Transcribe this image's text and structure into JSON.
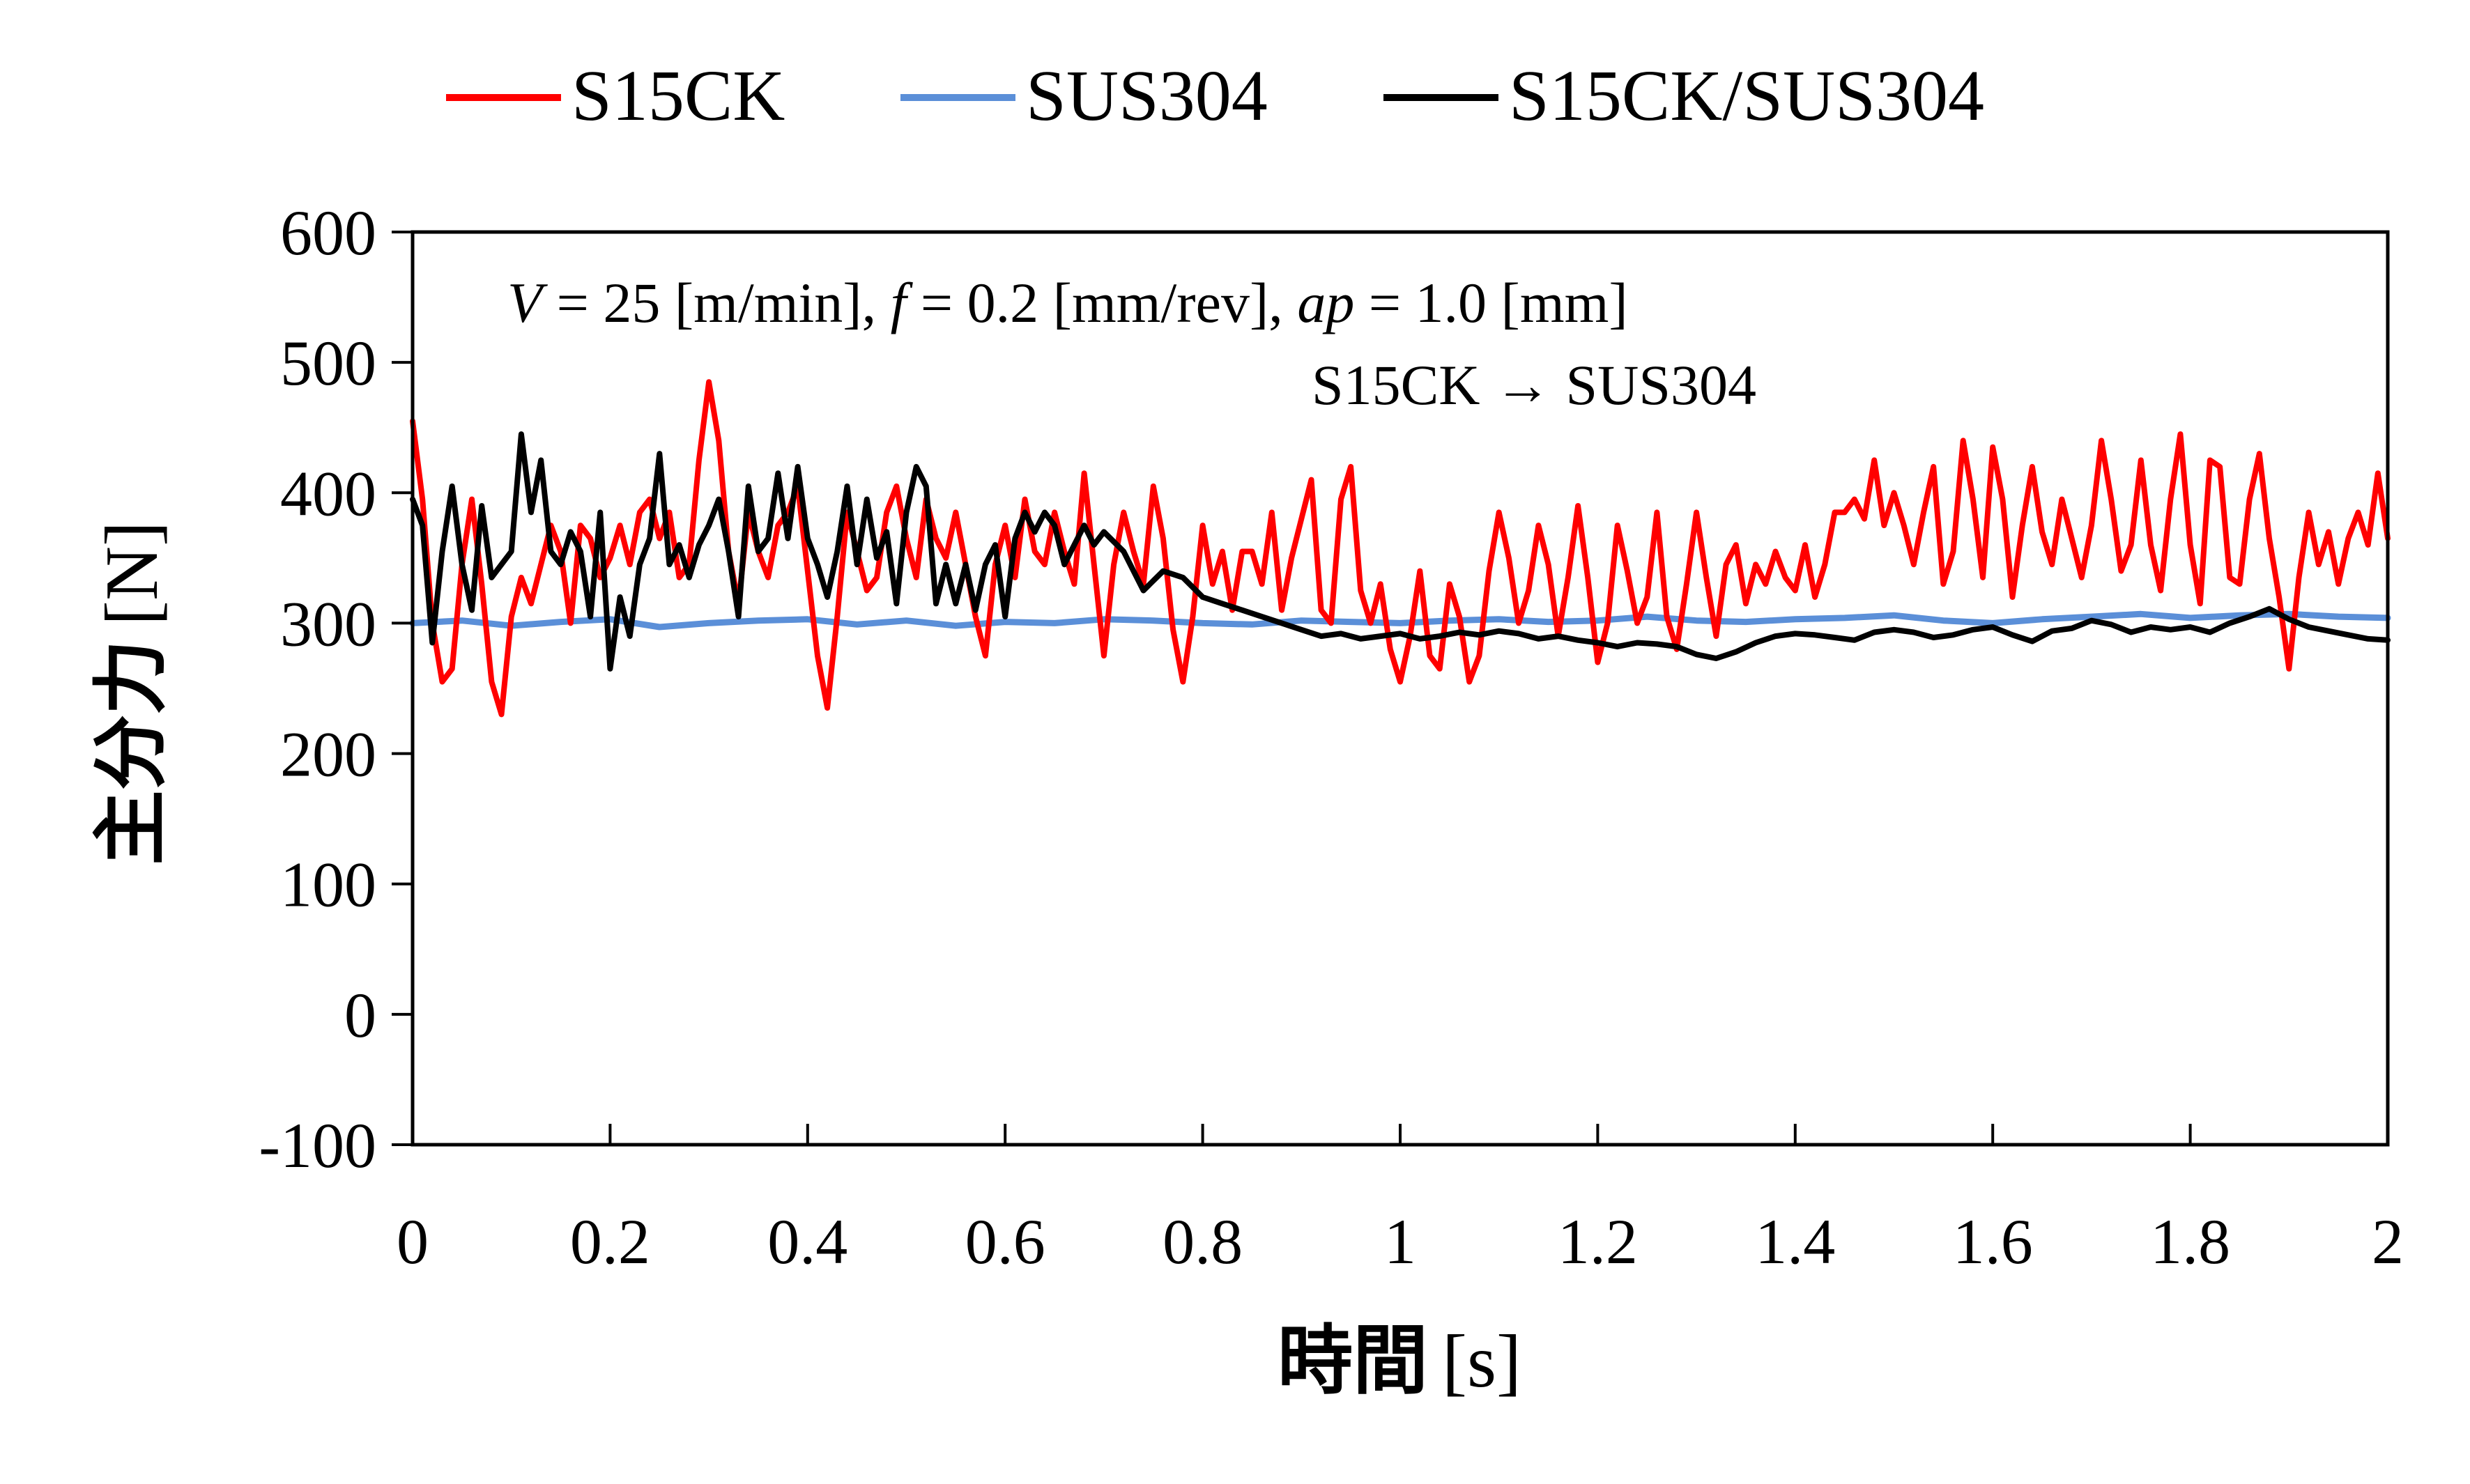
{
  "chart_data": {
    "type": "line",
    "title": "",
    "xlabel": "時間 [s]",
    "ylabel": "主分力 [N]",
    "xlabel_parts": {
      "name": "時間",
      "unit": "[s]"
    },
    "ylabel_parts": {
      "name": "主分力",
      "unit": "[N]"
    },
    "xlim": [
      0,
      2
    ],
    "ylim": [
      -100,
      600
    ],
    "xticks": [
      0,
      0.2,
      0.4,
      0.6,
      0.8,
      1,
      1.2,
      1.4,
      1.6,
      1.8,
      2
    ],
    "xtick_labels": [
      "0",
      "0.2",
      "0.4",
      "0.6",
      "0.8",
      "1",
      "1.2",
      "1.4",
      "1.6",
      "1.8",
      "2"
    ],
    "yticks": [
      -100,
      0,
      100,
      200,
      300,
      400,
      500,
      600
    ],
    "ytick_labels": [
      "-100",
      "0",
      "100",
      "200",
      "300",
      "400",
      "500",
      "600"
    ],
    "grid": false,
    "legend_position": "top-center",
    "annotations": {
      "conditions": {
        "v_symbol": "V",
        "v_text": " = 25 [m/min], ",
        "f_symbol": "f",
        "f_text": " = 0.2 [mm/rev], ",
        "ap_symbol": "ap",
        "ap_text": " = 1.0 [mm]"
      },
      "transition": "S15CK → SUS304"
    },
    "series": [
      {
        "name": "S15CK",
        "color": "#ff0000",
        "x": [
          0,
          0.01,
          0.02,
          0.03,
          0.04,
          0.05,
          0.06,
          0.07,
          0.08,
          0.09,
          0.1,
          0.11,
          0.12,
          0.13,
          0.14,
          0.15,
          0.16,
          0.17,
          0.18,
          0.19,
          0.2,
          0.21,
          0.22,
          0.23,
          0.24,
          0.25,
          0.26,
          0.27,
          0.28,
          0.29,
          0.3,
          0.31,
          0.32,
          0.33,
          0.34,
          0.35,
          0.36,
          0.37,
          0.38,
          0.39,
          0.4,
          0.41,
          0.42,
          0.43,
          0.44,
          0.45,
          0.46,
          0.47,
          0.48,
          0.49,
          0.5,
          0.51,
          0.52,
          0.53,
          0.54,
          0.55,
          0.56,
          0.57,
          0.58,
          0.59,
          0.6,
          0.61,
          0.62,
          0.63,
          0.64,
          0.65,
          0.66,
          0.67,
          0.68,
          0.69,
          0.7,
          0.71,
          0.72,
          0.73,
          0.74,
          0.75,
          0.76,
          0.77,
          0.78,
          0.79,
          0.8,
          0.81,
          0.82,
          0.83,
          0.84,
          0.85,
          0.86,
          0.87,
          0.88,
          0.89,
          0.9,
          0.91,
          0.92,
          0.93,
          0.94,
          0.95,
          0.96,
          0.97,
          0.98,
          0.99,
          1,
          1.01,
          1.02,
          1.03,
          1.04,
          1.05,
          1.06,
          1.07,
          1.08,
          1.09,
          1.1,
          1.11,
          1.12,
          1.13,
          1.14,
          1.15,
          1.16,
          1.17,
          1.18,
          1.19,
          1.2,
          1.21,
          1.22,
          1.23,
          1.24,
          1.25,
          1.26,
          1.27,
          1.28,
          1.29,
          1.3,
          1.31,
          1.32,
          1.33,
          1.34,
          1.35,
          1.36,
          1.37,
          1.38,
          1.39,
          1.4,
          1.41,
          1.42,
          1.43,
          1.44,
          1.45,
          1.46,
          1.47,
          1.48,
          1.49,
          1.5,
          1.51,
          1.52,
          1.53,
          1.54,
          1.55,
          1.56,
          1.57,
          1.58,
          1.59,
          1.6,
          1.61,
          1.62,
          1.63,
          1.64,
          1.65,
          1.66,
          1.67,
          1.68,
          1.69,
          1.7,
          1.71,
          1.72,
          1.73,
          1.74,
          1.75,
          1.76,
          1.77,
          1.78,
          1.79,
          1.8,
          1.81,
          1.82,
          1.83,
          1.84,
          1.85,
          1.86,
          1.87,
          1.88,
          1.89,
          1.9,
          1.91,
          1.92,
          1.93,
          1.94,
          1.95,
          1.96,
          1.97,
          1.98,
          1.99,
          2
        ],
        "y": [
          455,
          395,
          300,
          255,
          265,
          345,
          395,
          330,
          255,
          230,
          305,
          335,
          315,
          345,
          375,
          355,
          300,
          375,
          365,
          335,
          350,
          375,
          345,
          385,
          395,
          365,
          385,
          335,
          345,
          425,
          485,
          440,
          355,
          315,
          385,
          355,
          335,
          375,
          385,
          405,
          340,
          275,
          235,
          305,
          385,
          355,
          325,
          335,
          385,
          405,
          365,
          335,
          395,
          365,
          350,
          385,
          345,
          305,
          275,
          345,
          375,
          335,
          395,
          355,
          345,
          385,
          355,
          330,
          415,
          345,
          275,
          345,
          385,
          355,
          330,
          405,
          365,
          295,
          255,
          305,
          375,
          330,
          355,
          310,
          355,
          355,
          330,
          385,
          310,
          350,
          380,
          410,
          310,
          300,
          395,
          420,
          325,
          300,
          330,
          280,
          255,
          290,
          340,
          275,
          265,
          330,
          305,
          255,
          275,
          340,
          385,
          350,
          300,
          325,
          375,
          345,
          290,
          335,
          390,
          335,
          270,
          300,
          375,
          340,
          300,
          320,
          385,
          305,
          280,
          330,
          385,
          335,
          290,
          345,
          360,
          315,
          345,
          330,
          355,
          335,
          325,
          360,
          320,
          345,
          385,
          385,
          395,
          380,
          425,
          375,
          400,
          375,
          345,
          385,
          420,
          330,
          355,
          440,
          395,
          335,
          435,
          395,
          320,
          375,
          420,
          370,
          345,
          395,
          365,
          335,
          375,
          440,
          395,
          340,
          360,
          425,
          360,
          325,
          395,
          445,
          360,
          315,
          425,
          420,
          335,
          330,
          395,
          430,
          365,
          320,
          265,
          335,
          385,
          345,
          370,
          330,
          365,
          385,
          360,
          415,
          365
        ]
      },
      {
        "name": "SUS304",
        "color": "#5b8fd8",
        "x": [
          0,
          0.05,
          0.1,
          0.15,
          0.2,
          0.25,
          0.3,
          0.35,
          0.4,
          0.45,
          0.5,
          0.55,
          0.6,
          0.65,
          0.7,
          0.75,
          0.8,
          0.85,
          0.9,
          0.95,
          1,
          1.05,
          1.1,
          1.15,
          1.2,
          1.25,
          1.3,
          1.35,
          1.4,
          1.45,
          1.5,
          1.55,
          1.6,
          1.65,
          1.7,
          1.75,
          1.8,
          1.85,
          1.9,
          1.95,
          2
        ],
        "y": [
          300,
          302,
          298,
          301,
          303,
          297,
          300,
          302,
          303,
          299,
          302,
          298,
          301,
          300,
          303,
          302,
          300,
          299,
          302,
          301,
          300,
          302,
          303,
          301,
          302,
          305,
          302,
          301,
          303,
          304,
          306,
          302,
          300,
          303,
          305,
          307,
          304,
          306,
          307,
          305,
          304
        ]
      },
      {
        "name": "S15CK/SUS304",
        "color": "#000000",
        "x": [
          0,
          0.01,
          0.02,
          0.03,
          0.04,
          0.05,
          0.06,
          0.07,
          0.08,
          0.09,
          0.1,
          0.11,
          0.12,
          0.13,
          0.14,
          0.15,
          0.16,
          0.17,
          0.18,
          0.19,
          0.2,
          0.21,
          0.22,
          0.23,
          0.24,
          0.25,
          0.26,
          0.27,
          0.28,
          0.29,
          0.3,
          0.31,
          0.32,
          0.33,
          0.34,
          0.35,
          0.36,
          0.37,
          0.38,
          0.39,
          0.4,
          0.41,
          0.42,
          0.43,
          0.44,
          0.45,
          0.46,
          0.47,
          0.48,
          0.49,
          0.5,
          0.51,
          0.52,
          0.53,
          0.54,
          0.55,
          0.56,
          0.57,
          0.58,
          0.59,
          0.6,
          0.61,
          0.62,
          0.63,
          0.64,
          0.65,
          0.66,
          0.67,
          0.68,
          0.69,
          0.7,
          0.72,
          0.74,
          0.76,
          0.78,
          0.8,
          0.82,
          0.84,
          0.86,
          0.88,
          0.9,
          0.92,
          0.94,
          0.96,
          0.98,
          1,
          1.02,
          1.04,
          1.06,
          1.08,
          1.1,
          1.12,
          1.14,
          1.16,
          1.18,
          1.2,
          1.22,
          1.24,
          1.26,
          1.28,
          1.3,
          1.32,
          1.34,
          1.36,
          1.38,
          1.4,
          1.42,
          1.44,
          1.46,
          1.48,
          1.5,
          1.52,
          1.54,
          1.56,
          1.58,
          1.6,
          1.62,
          1.64,
          1.66,
          1.68,
          1.7,
          1.72,
          1.74,
          1.76,
          1.78,
          1.8,
          1.82,
          1.84,
          1.86,
          1.88,
          1.9,
          1.92,
          1.94,
          1.96,
          1.98,
          2
        ],
        "y": [
          395,
          375,
          285,
          355,
          405,
          345,
          310,
          390,
          335,
          345,
          355,
          445,
          385,
          425,
          355,
          345,
          370,
          355,
          305,
          385,
          265,
          320,
          290,
          345,
          365,
          430,
          345,
          360,
          335,
          360,
          375,
          395,
          355,
          305,
          405,
          355,
          365,
          415,
          365,
          420,
          365,
          345,
          320,
          355,
          405,
          345,
          395,
          350,
          370,
          315,
          385,
          420,
          405,
          315,
          345,
          315,
          345,
          310,
          345,
          360,
          305,
          365,
          385,
          370,
          385,
          375,
          345,
          360,
          375,
          360,
          370,
          355,
          325,
          340,
          335,
          320,
          315,
          310,
          305,
          300,
          295,
          290,
          292,
          288,
          290,
          292,
          288,
          290,
          293,
          291,
          294,
          292,
          288,
          290,
          287,
          285,
          282,
          285,
          284,
          282,
          276,
          273,
          278,
          285,
          290,
          292,
          291,
          289,
          287,
          293,
          295,
          293,
          289,
          291,
          295,
          297,
          291,
          286,
          294,
          296,
          302,
          299,
          293,
          297,
          295,
          297,
          293,
          300,
          305,
          311,
          303,
          297,
          294,
          291,
          288,
          287
        ]
      }
    ]
  }
}
